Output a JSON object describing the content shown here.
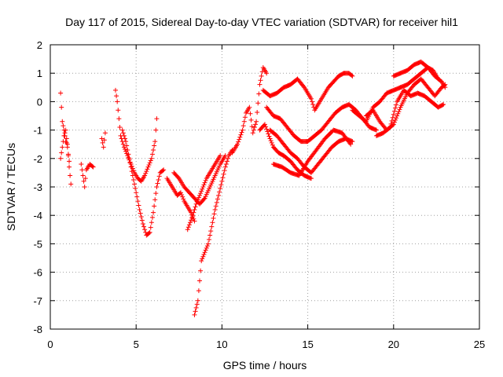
{
  "chart_data": {
    "type": "scatter",
    "title": "Day 117 of 2015, Sidereal Day-to-day VTEC variation (SDTVAR) for receiver hil1",
    "xlabel": "GPS time / hours",
    "ylabel": "SDTVAR / TECUs",
    "xlim": [
      0,
      25
    ],
    "ylim": [
      -8,
      2
    ],
    "xticks": [
      0,
      5,
      10,
      15,
      20,
      25
    ],
    "yticks": [
      -8,
      -7,
      -6,
      -5,
      -4,
      -3,
      -2,
      -1,
      0,
      1,
      2
    ],
    "grid": true,
    "marker": "+",
    "color": "#ff0000",
    "series": [
      {
        "points": [
          [
            0.6,
            0.3
          ],
          [
            0.7,
            -0.7
          ],
          [
            0.8,
            -1.0
          ],
          [
            0.9,
            -1.4
          ],
          [
            1.0,
            -1.5
          ],
          [
            1.1,
            -2.3
          ],
          [
            1.2,
            -2.9
          ]
        ]
      },
      {
        "points": [
          [
            0.6,
            -2.0
          ],
          [
            0.7,
            -1.6
          ],
          [
            0.8,
            -1.2
          ],
          [
            0.9,
            -1.0
          ],
          [
            1.0,
            -1.6
          ],
          [
            1.1,
            -2.1
          ]
        ]
      },
      {
        "points": [
          [
            1.8,
            -2.2
          ],
          [
            1.9,
            -2.6
          ],
          [
            2.0,
            -3.0
          ],
          [
            2.1,
            -2.4
          ],
          [
            2.3,
            -2.2
          ],
          [
            2.5,
            -2.3
          ]
        ]
      },
      {
        "points": [
          [
            3.0,
            -1.3
          ],
          [
            3.1,
            -1.6
          ],
          [
            3.2,
            -1.1
          ]
        ]
      },
      {
        "points": [
          [
            3.8,
            0.4
          ],
          [
            3.9,
            0.0
          ],
          [
            4.0,
            -0.6
          ],
          [
            4.1,
            -1.2
          ],
          [
            4.3,
            -1.6
          ],
          [
            4.5,
            -1.9
          ],
          [
            4.7,
            -2.2
          ],
          [
            4.9,
            -2.5
          ],
          [
            5.1,
            -2.7
          ],
          [
            5.3,
            -2.8
          ],
          [
            5.5,
            -2.6
          ],
          [
            5.7,
            -2.3
          ],
          [
            5.9,
            -2.0
          ],
          [
            6.1,
            -1.4
          ],
          [
            6.2,
            -0.6
          ]
        ]
      },
      {
        "points": [
          [
            4.2,
            -1.0
          ],
          [
            4.4,
            -1.4
          ],
          [
            4.6,
            -2.0
          ],
          [
            4.8,
            -2.6
          ],
          [
            5.0,
            -3.2
          ],
          [
            5.2,
            -3.8
          ],
          [
            5.4,
            -4.3
          ],
          [
            5.6,
            -4.7
          ],
          [
            5.8,
            -4.6
          ],
          [
            6.0,
            -3.9
          ],
          [
            6.2,
            -3.0
          ],
          [
            6.4,
            -2.5
          ],
          [
            6.6,
            -2.4
          ]
        ]
      },
      {
        "points": [
          [
            6.8,
            -2.7
          ],
          [
            7.0,
            -2.9
          ],
          [
            7.2,
            -3.1
          ],
          [
            7.4,
            -3.3
          ],
          [
            7.6,
            -3.2
          ],
          [
            7.8,
            -3.5
          ],
          [
            8.0,
            -3.7
          ],
          [
            8.2,
            -3.9
          ],
          [
            8.4,
            -4.2
          ]
        ]
      },
      {
        "points": [
          [
            7.2,
            -2.5
          ],
          [
            7.5,
            -2.7
          ],
          [
            7.8,
            -3.0
          ],
          [
            8.1,
            -3.2
          ],
          [
            8.4,
            -3.4
          ],
          [
            8.7,
            -3.6
          ],
          [
            9.0,
            -3.4
          ],
          [
            9.3,
            -3.0
          ],
          [
            9.6,
            -2.6
          ],
          [
            9.9,
            -2.2
          ],
          [
            10.2,
            -1.9
          ]
        ]
      },
      {
        "points": [
          [
            8.4,
            -7.5
          ],
          [
            8.6,
            -7.0
          ],
          [
            8.7,
            -6.3
          ],
          [
            8.8,
            -5.6
          ],
          [
            9.0,
            -5.3
          ],
          [
            9.2,
            -5.0
          ],
          [
            9.4,
            -4.4
          ],
          [
            9.6,
            -3.8
          ],
          [
            9.8,
            -3.3
          ],
          [
            10.0,
            -2.8
          ],
          [
            10.2,
            -2.3
          ],
          [
            10.4,
            -1.9
          ],
          [
            10.6,
            -1.7
          ]
        ]
      },
      {
        "points": [
          [
            8.0,
            -4.5
          ],
          [
            8.3,
            -4.0
          ],
          [
            8.5,
            -3.6
          ],
          [
            8.7,
            -3.3
          ],
          [
            8.9,
            -3.0
          ],
          [
            9.1,
            -2.7
          ],
          [
            9.3,
            -2.5
          ],
          [
            9.5,
            -2.3
          ],
          [
            9.7,
            -2.1
          ],
          [
            9.9,
            -1.9
          ]
        ]
      },
      {
        "points": [
          [
            10.6,
            -1.8
          ],
          [
            10.9,
            -1.5
          ],
          [
            11.2,
            -1.0
          ],
          [
            11.4,
            -0.4
          ],
          [
            11.6,
            -0.2
          ],
          [
            11.8,
            -1.1
          ],
          [
            12.0,
            -0.7
          ],
          [
            12.2,
            0.6
          ],
          [
            12.4,
            1.2
          ],
          [
            12.6,
            1.0
          ]
        ]
      },
      {
        "points": [
          [
            12.4,
            0.4
          ],
          [
            12.8,
            0.2
          ],
          [
            13.2,
            0.3
          ],
          [
            13.6,
            0.5
          ],
          [
            14.0,
            0.6
          ],
          [
            14.4,
            0.8
          ],
          [
            14.8,
            0.5
          ],
          [
            15.2,
            0.1
          ],
          [
            15.4,
            -0.3
          ],
          [
            15.6,
            -0.1
          ],
          [
            15.9,
            0.2
          ],
          [
            16.2,
            0.5
          ],
          [
            16.5,
            0.7
          ],
          [
            16.8,
            0.9
          ],
          [
            17.1,
            1.0
          ],
          [
            17.4,
            1.0
          ],
          [
            17.6,
            0.9
          ]
        ]
      },
      {
        "points": [
          [
            12.6,
            -0.2
          ],
          [
            13.0,
            -0.5
          ],
          [
            13.4,
            -0.6
          ],
          [
            13.8,
            -0.9
          ],
          [
            14.2,
            -1.2
          ],
          [
            14.6,
            -1.4
          ],
          [
            15.0,
            -1.4
          ],
          [
            15.4,
            -1.2
          ],
          [
            15.8,
            -1.0
          ],
          [
            16.2,
            -0.7
          ],
          [
            16.6,
            -0.4
          ],
          [
            17.0,
            -0.2
          ],
          [
            17.4,
            -0.1
          ],
          [
            17.8,
            -0.3
          ],
          [
            18.2,
            -0.6
          ],
          [
            18.6,
            -0.9
          ],
          [
            19.0,
            -1.0
          ]
        ]
      },
      {
        "points": [
          [
            12.8,
            -1.0
          ],
          [
            13.2,
            -1.2
          ],
          [
            13.6,
            -1.5
          ],
          [
            14.0,
            -1.8
          ],
          [
            14.4,
            -2.0
          ],
          [
            14.8,
            -2.3
          ],
          [
            15.2,
            -2.5
          ],
          [
            15.6,
            -2.2
          ],
          [
            16.0,
            -1.9
          ],
          [
            16.4,
            -1.6
          ],
          [
            16.8,
            -1.4
          ],
          [
            17.2,
            -1.3
          ],
          [
            17.6,
            -1.4
          ]
        ]
      },
      {
        "points": [
          [
            13.0,
            -2.2
          ],
          [
            13.5,
            -2.3
          ],
          [
            14.0,
            -2.5
          ],
          [
            14.5,
            -2.6
          ],
          [
            15.0,
            -2.1
          ],
          [
            15.5,
            -1.7
          ],
          [
            16.0,
            -1.3
          ],
          [
            16.5,
            -1.0
          ],
          [
            17.0,
            -1.1
          ],
          [
            17.5,
            -1.5
          ]
        ]
      },
      {
        "points": [
          [
            12.2,
            -1.0
          ],
          [
            12.5,
            -0.8
          ],
          [
            12.8,
            -1.3
          ],
          [
            13.0,
            -1.6
          ],
          [
            13.3,
            -1.8
          ],
          [
            13.6,
            -1.9
          ],
          [
            14.0,
            -2.1
          ],
          [
            14.4,
            -2.4
          ],
          [
            14.8,
            -2.6
          ],
          [
            15.2,
            -2.7
          ]
        ]
      },
      {
        "points": [
          [
            17.6,
            -0.3
          ],
          [
            18.0,
            -0.5
          ],
          [
            18.4,
            -0.7
          ],
          [
            18.8,
            -0.2
          ],
          [
            19.2,
            0.0
          ],
          [
            19.6,
            0.3
          ],
          [
            20.0,
            0.4
          ],
          [
            20.4,
            0.5
          ],
          [
            20.8,
            0.6
          ],
          [
            21.2,
            0.8
          ],
          [
            21.6,
            1.0
          ],
          [
            22.0,
            1.2
          ],
          [
            22.3,
            1.1
          ],
          [
            22.6,
            0.8
          ]
        ]
      },
      {
        "points": [
          [
            18.4,
            -0.5
          ],
          [
            18.8,
            -0.3
          ],
          [
            19.2,
            -0.7
          ],
          [
            19.6,
            -1.0
          ],
          [
            20.0,
            -0.8
          ],
          [
            20.4,
            -0.2
          ],
          [
            20.8,
            0.3
          ],
          [
            21.2,
            0.6
          ],
          [
            21.6,
            0.8
          ],
          [
            22.0,
            0.5
          ],
          [
            22.4,
            0.2
          ],
          [
            22.8,
            0.5
          ],
          [
            23.0,
            0.6
          ]
        ]
      },
      {
        "points": [
          [
            19.0,
            -1.2
          ],
          [
            19.4,
            -1.1
          ],
          [
            19.8,
            -0.9
          ],
          [
            20.2,
            0.0
          ],
          [
            20.6,
            0.4
          ],
          [
            21.0,
            0.2
          ],
          [
            21.4,
            0.3
          ],
          [
            21.8,
            0.2
          ],
          [
            22.2,
            0.0
          ],
          [
            22.6,
            -0.2
          ],
          [
            22.9,
            -0.1
          ]
        ]
      },
      {
        "points": [
          [
            20.0,
            0.9
          ],
          [
            20.4,
            1.0
          ],
          [
            20.8,
            1.1
          ],
          [
            21.2,
            1.3
          ],
          [
            21.6,
            1.4
          ],
          [
            22.0,
            1.2
          ],
          [
            22.4,
            0.9
          ],
          [
            22.8,
            0.7
          ],
          [
            23.0,
            0.5
          ]
        ]
      }
    ]
  }
}
